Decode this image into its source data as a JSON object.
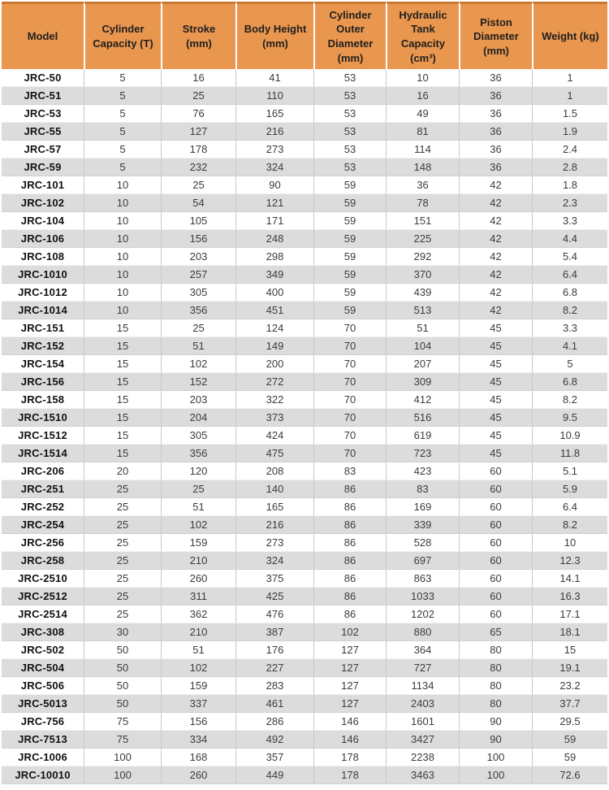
{
  "colors": {
    "header_bg": "#E9964E",
    "header_top_border": "#C8782F",
    "stripe": "#DCDCDC",
    "row_white": "#FFFFFF",
    "column_border": "#C9C9C9",
    "header_text": "#1F1F1F",
    "model_text": "#111111",
    "cell_text": "#3C3C3C"
  },
  "table": {
    "columns": [
      {
        "key": "model",
        "label": "Model"
      },
      {
        "key": "cylinder_capacity",
        "label": "Cylinder Capacity (T)"
      },
      {
        "key": "stroke",
        "label": "Stroke (mm)"
      },
      {
        "key": "body_height",
        "label": "Body Height (mm)"
      },
      {
        "key": "cylinder_outer_diameter",
        "label": "Cylinder Outer Diameter (mm)"
      },
      {
        "key": "hydraulic_tank_capacity",
        "label": "Hydraulic Tank Capacity (cm³)"
      },
      {
        "key": "piston_diameter",
        "label": "Piston Diameter (mm)"
      },
      {
        "key": "weight",
        "label": "Weight (kg)"
      }
    ],
    "rows": [
      [
        "JRC-50",
        "5",
        "16",
        "41",
        "53",
        "10",
        "36",
        "1"
      ],
      [
        "JRC-51",
        "5",
        "25",
        "110",
        "53",
        "16",
        "36",
        "1"
      ],
      [
        "JRC-53",
        "5",
        "76",
        "165",
        "53",
        "49",
        "36",
        "1.5"
      ],
      [
        "JRC-55",
        "5",
        "127",
        "216",
        "53",
        "81",
        "36",
        "1.9"
      ],
      [
        "JRC-57",
        "5",
        "178",
        "273",
        "53",
        "114",
        "36",
        "2.4"
      ],
      [
        "JRC-59",
        "5",
        "232",
        "324",
        "53",
        "148",
        "36",
        "2.8"
      ],
      [
        "JRC-101",
        "10",
        "25",
        "90",
        "59",
        "36",
        "42",
        "1.8"
      ],
      [
        "JRC-102",
        "10",
        "54",
        "121",
        "59",
        "78",
        "42",
        "2.3"
      ],
      [
        "JRC-104",
        "10",
        "105",
        "171",
        "59",
        "151",
        "42",
        "3.3"
      ],
      [
        "JRC-106",
        "10",
        "156",
        "248",
        "59",
        "225",
        "42",
        "4.4"
      ],
      [
        "JRC-108",
        "10",
        "203",
        "298",
        "59",
        "292",
        "42",
        "5.4"
      ],
      [
        "JRC-1010",
        "10",
        "257",
        "349",
        "59",
        "370",
        "42",
        "6.4"
      ],
      [
        "JRC-1012",
        "10",
        "305",
        "400",
        "59",
        "439",
        "42",
        "6.8"
      ],
      [
        "JRC-1014",
        "10",
        "356",
        "451",
        "59",
        "513",
        "42",
        "8.2"
      ],
      [
        "JRC-151",
        "15",
        "25",
        "124",
        "70",
        "51",
        "45",
        "3.3"
      ],
      [
        "JRC-152",
        "15",
        "51",
        "149",
        "70",
        "104",
        "45",
        "4.1"
      ],
      [
        "JRC-154",
        "15",
        "102",
        "200",
        "70",
        "207",
        "45",
        "5"
      ],
      [
        "JRC-156",
        "15",
        "152",
        "272",
        "70",
        "309",
        "45",
        "6.8"
      ],
      [
        "JRC-158",
        "15",
        "203",
        "322",
        "70",
        "412",
        "45",
        "8.2"
      ],
      [
        "JRC-1510",
        "15",
        "204",
        "373",
        "70",
        "516",
        "45",
        "9.5"
      ],
      [
        "JRC-1512",
        "15",
        "305",
        "424",
        "70",
        "619",
        "45",
        "10.9"
      ],
      [
        "JRC-1514",
        "15",
        "356",
        "475",
        "70",
        "723",
        "45",
        "11.8"
      ],
      [
        "JRC-206",
        "20",
        "120",
        "208",
        "83",
        "423",
        "60",
        "5.1"
      ],
      [
        "JRC-251",
        "25",
        "25",
        "140",
        "86",
        "83",
        "60",
        "5.9"
      ],
      [
        "JRC-252",
        "25",
        "51",
        "165",
        "86",
        "169",
        "60",
        "6.4"
      ],
      [
        "JRC-254",
        "25",
        "102",
        "216",
        "86",
        "339",
        "60",
        "8.2"
      ],
      [
        "JRC-256",
        "25",
        "159",
        "273",
        "86",
        "528",
        "60",
        "10"
      ],
      [
        "JRC-258",
        "25",
        "210",
        "324",
        "86",
        "697",
        "60",
        "12.3"
      ],
      [
        "JRC-2510",
        "25",
        "260",
        "375",
        "86",
        "863",
        "60",
        "14.1"
      ],
      [
        "JRC-2512",
        "25",
        "311",
        "425",
        "86",
        "1033",
        "60",
        "16.3"
      ],
      [
        "JRC-2514",
        "25",
        "362",
        "476",
        "86",
        "1202",
        "60",
        "17.1"
      ],
      [
        "JRC-308",
        "30",
        "210",
        "387",
        "102",
        "880",
        "65",
        "18.1"
      ],
      [
        "JRC-502",
        "50",
        "51",
        "176",
        "127",
        "364",
        "80",
        "15"
      ],
      [
        "JRC-504",
        "50",
        "102",
        "227",
        "127",
        "727",
        "80",
        "19.1"
      ],
      [
        "JRC-506",
        "50",
        "159",
        "283",
        "127",
        "1134",
        "80",
        "23.2"
      ],
      [
        "JRC-5013",
        "50",
        "337",
        "461",
        "127",
        "2403",
        "80",
        "37.7"
      ],
      [
        "JRC-756",
        "75",
        "156",
        "286",
        "146",
        "1601",
        "90",
        "29.5"
      ],
      [
        "JRC-7513",
        "75",
        "334",
        "492",
        "146",
        "3427",
        "90",
        "59"
      ],
      [
        "JRC-1006",
        "100",
        "168",
        "357",
        "178",
        "2238",
        "100",
        "59"
      ],
      [
        "JRC-10010",
        "100",
        "260",
        "449",
        "178",
        "3463",
        "100",
        "72.6"
      ]
    ]
  }
}
